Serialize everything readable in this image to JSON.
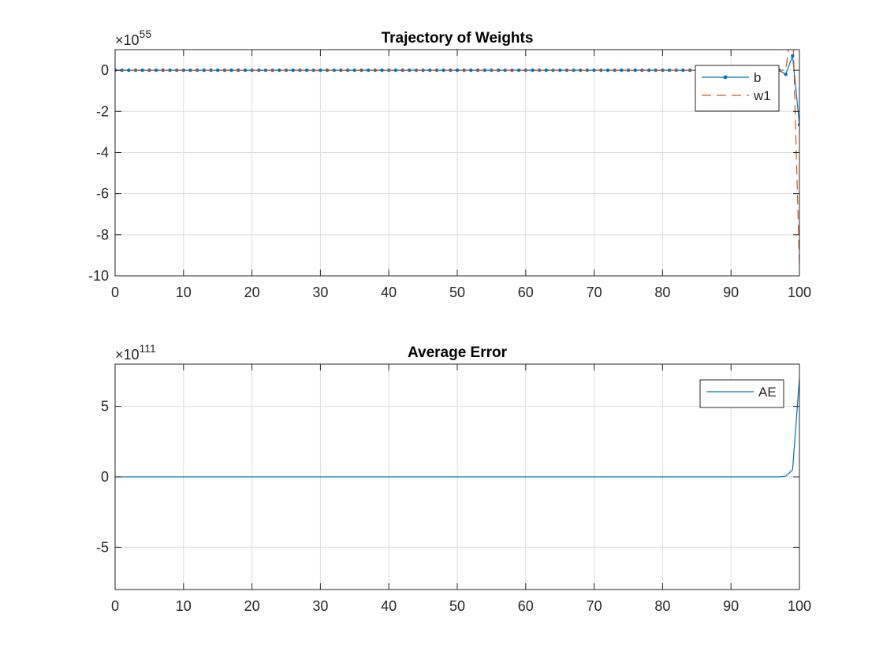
{
  "figure": {
    "background": "#ffffff",
    "axis_color": "#262626",
    "grid_color": "#dedede",
    "colors": {
      "b": "#0072bd",
      "w1": "#d95319",
      "AE": "#0072bd"
    }
  },
  "chart_data": [
    {
      "type": "line",
      "title": "Trajectory of Weights",
      "xlabel": "",
      "ylabel": "",
      "xlim": [
        0,
        100
      ],
      "ylim": [
        -10,
        1
      ],
      "y_scale_exponent": "55",
      "xticks": [
        0,
        10,
        20,
        30,
        40,
        50,
        60,
        70,
        80,
        90,
        100
      ],
      "yticks": [
        -10,
        -8,
        -6,
        -4,
        -2,
        0
      ],
      "ytick_labels": [
        "-10",
        "-8",
        "-6",
        "-4",
        "-2",
        "0"
      ],
      "grid": true,
      "legend_position": "top-right",
      "series": [
        {
          "name": "b",
          "style": "solid-dot",
          "x": [
            0,
            1,
            2,
            3,
            4,
            5,
            6,
            7,
            8,
            9,
            10,
            11,
            12,
            13,
            14,
            15,
            16,
            17,
            18,
            19,
            20,
            21,
            22,
            23,
            24,
            25,
            26,
            27,
            28,
            29,
            30,
            31,
            32,
            33,
            34,
            35,
            36,
            37,
            38,
            39,
            40,
            41,
            42,
            43,
            44,
            45,
            46,
            47,
            48,
            49,
            50,
            51,
            52,
            53,
            54,
            55,
            56,
            57,
            58,
            59,
            60,
            61,
            62,
            63,
            64,
            65,
            66,
            67,
            68,
            69,
            70,
            71,
            72,
            73,
            74,
            75,
            76,
            77,
            78,
            79,
            80,
            81,
            82,
            83,
            84,
            85,
            86,
            87,
            88,
            89,
            90,
            91,
            92,
            93,
            94,
            95,
            96,
            97,
            98,
            99,
            100
          ],
          "values": [
            0,
            0,
            0,
            0,
            0,
            0,
            0,
            0,
            0,
            0,
            0,
            0,
            0,
            0,
            0,
            0,
            0,
            0,
            0,
            0,
            0,
            0,
            0,
            0,
            0,
            0,
            0,
            0,
            0,
            0,
            0,
            0,
            0,
            0,
            0,
            0,
            0,
            0,
            0,
            0,
            0,
            0,
            0,
            0,
            0,
            0,
            0,
            0,
            0,
            0,
            0,
            0,
            0,
            0,
            0,
            0,
            0,
            0,
            0,
            0,
            0,
            0,
            0,
            0,
            0,
            0,
            0,
            0,
            0,
            0,
            0,
            0,
            0,
            0,
            0,
            0,
            0,
            0,
            0,
            0,
            0,
            0,
            0,
            0,
            0,
            0,
            0,
            0,
            0,
            0,
            0,
            0,
            0,
            0,
            0,
            0,
            0,
            0,
            -0.2,
            0.7,
            -2.65
          ]
        },
        {
          "name": "w1",
          "style": "dashed",
          "x": [
            0,
            1,
            2,
            3,
            4,
            5,
            6,
            7,
            8,
            9,
            10,
            11,
            12,
            13,
            14,
            15,
            16,
            17,
            18,
            19,
            20,
            21,
            22,
            23,
            24,
            25,
            26,
            27,
            28,
            29,
            30,
            31,
            32,
            33,
            34,
            35,
            36,
            37,
            38,
            39,
            40,
            41,
            42,
            43,
            44,
            45,
            46,
            47,
            48,
            49,
            50,
            51,
            52,
            53,
            54,
            55,
            56,
            57,
            58,
            59,
            60,
            61,
            62,
            63,
            64,
            65,
            66,
            67,
            68,
            69,
            70,
            71,
            72,
            73,
            74,
            75,
            76,
            77,
            78,
            79,
            80,
            81,
            82,
            83,
            84,
            85,
            86,
            87,
            88,
            89,
            90,
            91,
            92,
            93,
            94,
            95,
            96,
            97,
            98,
            99,
            100
          ],
          "values": [
            0,
            0,
            0,
            0,
            0,
            0,
            0,
            0,
            0,
            0,
            0,
            0,
            0,
            0,
            0,
            0,
            0,
            0,
            0,
            0,
            0,
            0,
            0,
            0,
            0,
            0,
            0,
            0,
            0,
            0,
            0,
            0,
            0,
            0,
            0,
            0,
            0,
            0,
            0,
            0,
            0,
            0,
            0,
            0,
            0,
            0,
            0,
            0,
            0,
            0,
            0,
            0,
            0,
            0,
            0,
            0,
            0,
            0,
            0,
            0,
            0,
            0,
            0,
            0,
            0,
            0,
            0,
            0,
            0,
            0,
            0,
            0,
            0,
            0,
            0,
            0,
            0,
            0,
            0,
            0,
            0,
            0,
            0,
            0,
            0,
            0,
            0,
            0,
            0,
            0,
            0,
            0,
            0,
            0,
            0,
            0,
            0,
            0,
            0,
            2.5,
            -9.5
          ]
        }
      ]
    },
    {
      "type": "line",
      "title": "Average Error",
      "xlabel": "",
      "ylabel": "",
      "xlim": [
        0,
        100
      ],
      "ylim": [
        -8,
        8
      ],
      "y_scale_exponent": "111",
      "xticks": [
        0,
        10,
        20,
        30,
        40,
        50,
        60,
        70,
        80,
        90,
        100
      ],
      "yticks": [
        -5,
        0,
        5
      ],
      "ytick_labels": [
        "-5",
        "0",
        "5"
      ],
      "grid": true,
      "legend_position": "top-right",
      "series": [
        {
          "name": "AE",
          "style": "solid",
          "x": [
            0,
            10,
            20,
            30,
            40,
            50,
            60,
            70,
            80,
            90,
            97,
            98,
            99,
            100
          ],
          "values": [
            0,
            0,
            0,
            0,
            0,
            0,
            0,
            0,
            0,
            0,
            0,
            0.05,
            0.5,
            7.0
          ]
        }
      ]
    }
  ]
}
